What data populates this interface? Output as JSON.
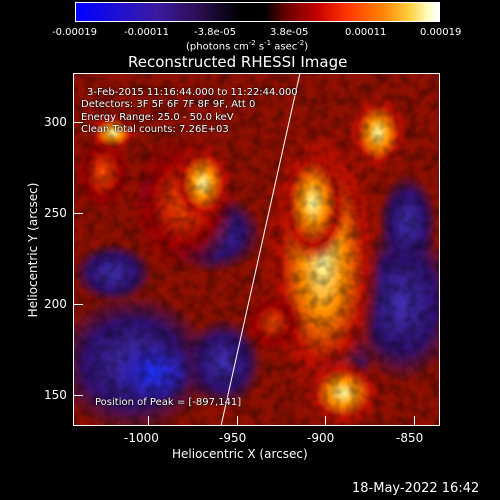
{
  "colorbar": {
    "ticks": [
      "-0.00019",
      "-0.00011",
      "-3.8e-05",
      "3.8e-05",
      "0.00011",
      "0.00019"
    ],
    "unit_main": "(photons cm",
    "unit_sup1": "-2",
    "unit_s": " s",
    "unit_sup2": "-1",
    "unit_asec": " asec",
    "unit_sup3": "-2",
    "unit_close": ")"
  },
  "title": "Reconstructed RHESSI Image",
  "xlabel": "Heliocentric X (arcsec)",
  "ylabel": "Heliocentric Y (arcsec)",
  "xticks": [
    "-1000",
    "-950",
    "-900",
    "-850"
  ],
  "yticks": [
    "300",
    "250",
    "200",
    "150"
  ],
  "annotations": {
    "time": "3-Feb-2015 11:16:44.000 to 11:22:44.000",
    "detectors": "Detectors: 3F 5F 6F 7F 8F 9F, Att 0",
    "energy": "Energy Range: 25.0 - 50.0 keV",
    "counts": "Clean    Total counts: 7.26E+03",
    "peak": "Position of Peak = [-897,141]"
  },
  "timestamp": "18-May-2022 16:42",
  "colors": {
    "background": "#000000",
    "scale": [
      "#0000ff",
      "#3020c0",
      "#501080",
      "#000000",
      "#800000",
      "#ff2000",
      "#ff8000",
      "#ffff60",
      "#ffffff"
    ]
  }
}
